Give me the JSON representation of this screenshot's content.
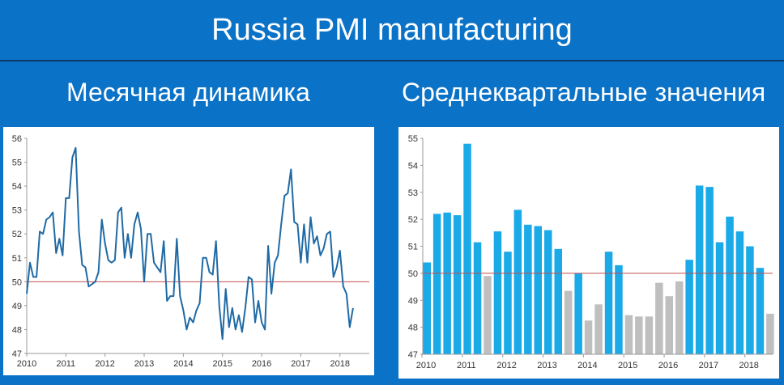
{
  "header": {
    "title": "Russia PMI manufacturing"
  },
  "panels": {
    "left_title": "Месячная динамика",
    "right_title": "Среднеквартальные значения"
  },
  "colors": {
    "background": "#0a72c7",
    "line": "#1f6aa5",
    "threshold": "#c0504d",
    "bar_above": "#1aaae8",
    "bar_below": "#bfbfbf"
  },
  "chart_data": [
    {
      "type": "line",
      "title": "Месячная динамика",
      "ylim": [
        47,
        56
      ],
      "yticks": [
        47,
        48,
        49,
        50,
        51,
        52,
        53,
        54,
        55,
        56
      ],
      "xlim": [
        2010,
        2018.75
      ],
      "xticks": [
        2010,
        2011,
        2012,
        2013,
        2014,
        2015,
        2016,
        2017,
        2018
      ],
      "threshold": 50,
      "grid": false,
      "series": [
        {
          "start_year": 2010,
          "start_month": 1,
          "values": [
            49.5,
            50.8,
            50.2,
            50.2,
            52.1,
            52.0,
            52.6,
            52.7,
            52.9,
            51.2,
            51.8,
            51.1,
            53.5,
            53.5,
            55.2,
            55.6,
            52.1,
            50.7,
            50.6,
            49.8,
            49.9,
            50.0,
            50.4,
            52.6,
            51.6,
            50.9,
            50.8,
            50.9,
            52.9,
            53.1,
            51.0,
            52.0,
            51.0,
            52.4,
            52.9,
            52.2,
            50.0,
            52.0,
            52.0,
            50.8,
            50.6,
            50.4,
            51.7,
            49.2,
            49.4,
            49.4,
            51.8,
            49.4,
            48.8,
            48.0,
            48.5,
            48.3,
            48.8,
            49.1,
            51.0,
            51.0,
            50.4,
            50.3,
            51.7,
            49.0,
            47.6,
            49.7,
            48.1,
            48.9,
            48.0,
            48.6,
            47.9,
            48.9,
            50.2,
            50.1,
            48.3,
            49.2,
            48.3,
            48.0,
            51.5,
            49.5,
            50.8,
            51.1,
            52.4,
            53.6,
            53.7,
            54.7,
            52.5,
            52.4,
            50.8,
            52.4,
            50.8,
            52.7,
            51.6,
            51.9,
            51.1,
            51.4,
            52.0,
            52.1,
            50.2,
            50.6,
            51.3,
            49.8,
            49.5,
            48.1,
            48.9
          ]
        }
      ]
    },
    {
      "type": "bar",
      "title": "Среднеквартальные значения",
      "ylim": [
        47,
        55
      ],
      "yticks": [
        47,
        48,
        49,
        50,
        51,
        52,
        53,
        54,
        55
      ],
      "xticks": [
        2010,
        2011,
        2012,
        2013,
        2014,
        2015,
        2016,
        2017,
        2018
      ],
      "threshold": 50,
      "grid": false,
      "start_year": 2010,
      "values": [
        50.4,
        52.2,
        52.25,
        52.15,
        54.8,
        51.15,
        49.9,
        51.55,
        50.8,
        52.35,
        51.8,
        51.75,
        51.6,
        50.9,
        49.35,
        50.0,
        48.25,
        48.85,
        50.8,
        50.3,
        48.45,
        48.4,
        48.4,
        49.65,
        49.15,
        49.7,
        50.5,
        53.25,
        53.2,
        51.15,
        52.1,
        51.55,
        51.0,
        50.2,
        48.5
      ]
    }
  ]
}
